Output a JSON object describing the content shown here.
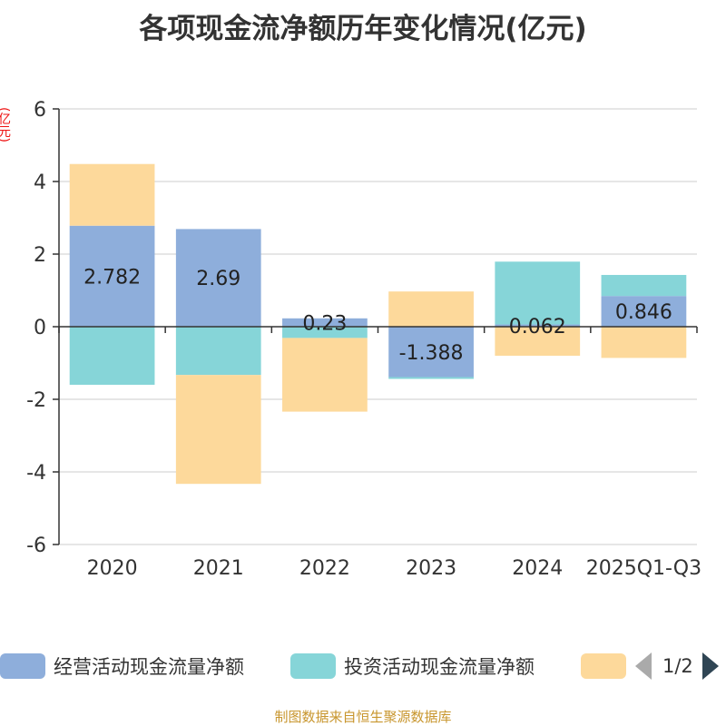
{
  "chart_data": {
    "type": "bar",
    "stacked": true,
    "title": "各项现金流净额历年变化情况(亿元)",
    "ylabel": "(亿元)",
    "ylim": [
      -6,
      6
    ],
    "yticks": [
      -6,
      -4,
      -2,
      0,
      2,
      4,
      6
    ],
    "grid": true,
    "categories": [
      "2020",
      "2021",
      "2022",
      "2023",
      "2024",
      "2025Q1-Q3"
    ],
    "series": [
      {
        "name": "经营活动现金流量净额",
        "color": "#8eaedb",
        "values": [
          2.782,
          2.69,
          0.23,
          -1.388,
          0.062,
          0.846
        ],
        "labels": [
          "2.782",
          "2.69",
          "0.23",
          "-1.388",
          "0.062",
          "0.846"
        ]
      },
      {
        "name": "投资活动现金流量净额",
        "color": "#86d5d8",
        "values": [
          -1.6,
          -1.33,
          -0.31,
          -0.05,
          1.73,
          0.58
        ]
      },
      {
        "name": "",
        "color": "#fdd99b",
        "values": [
          1.7,
          -3.0,
          -2.03,
          0.97,
          -0.8,
          -0.86
        ]
      }
    ]
  },
  "legend": {
    "items": [
      {
        "label": "经营活动现金流量净额",
        "color": "#8eaedb"
      },
      {
        "label": "投资活动现金流量净额",
        "color": "#86d5d8"
      },
      {
        "label": "",
        "color": "#fdd99b"
      }
    ],
    "page": "1/2"
  },
  "source": "制图数据来自恒生聚源数据库"
}
